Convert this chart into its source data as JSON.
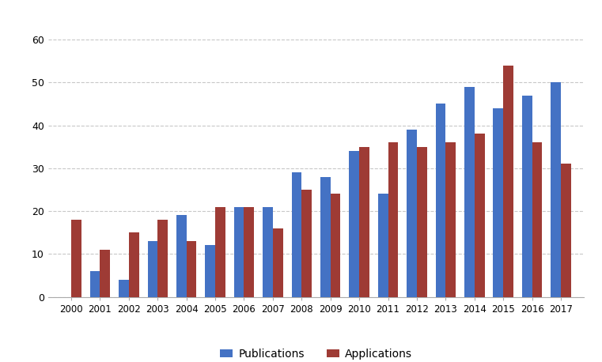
{
  "years": [
    2000,
    2001,
    2002,
    2003,
    2004,
    2005,
    2006,
    2007,
    2008,
    2009,
    2010,
    2011,
    2012,
    2013,
    2014,
    2015,
    2016,
    2017
  ],
  "publications": [
    0,
    6,
    4,
    13,
    19,
    12,
    21,
    21,
    29,
    28,
    34,
    24,
    39,
    45,
    49,
    44,
    47,
    50
  ],
  "applications": [
    18,
    11,
    15,
    18,
    13,
    21,
    21,
    16,
    25,
    24,
    35,
    36,
    35,
    36,
    38,
    54,
    36,
    31
  ],
  "pub_color": "#4472C4",
  "app_color": "#9E3B35",
  "bar_width": 0.35,
  "ylim": [
    0,
    65
  ],
  "yticks": [
    0,
    10,
    20,
    30,
    40,
    50,
    60
  ],
  "legend_labels": [
    "Publications",
    "Applications"
  ],
  "grid_color": "#c8c8c8",
  "background_color": "#ffffff",
  "figsize": [
    7.61,
    4.58
  ],
  "dpi": 100
}
